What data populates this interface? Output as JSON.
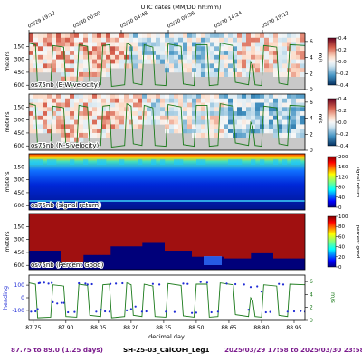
{
  "colors": {
    "footer_purple": "#7a1a8c",
    "footer_black": "#000000",
    "speed_green": "#1a7a1a",
    "heading_blue": "#1f2bd6",
    "nodata_gray": "#c8c8c8"
  },
  "top_axis": {
    "label": "UTC dates (MM/DD hh:mm)",
    "ticks": [
      "03/29 19:12",
      "03/30 00:00",
      "03/30 04:48",
      "03/30 09:36",
      "03/30 14:24",
      "03/30 19:12"
    ]
  },
  "footer": {
    "left": "87.75 to 89.0 (1.25 days)",
    "center": "SH-25-03_CalCOFI_Leg1",
    "right": "2025/03/29 17:58 to 2025/03/30 23:58"
  },
  "chart_data": [
    {
      "type": "heatmap",
      "label": "os75nb (E-W velocity)",
      "ylabel": "meters",
      "yticks": [
        150,
        300,
        450,
        600
      ],
      "ylim": [
        650,
        0
      ],
      "right_axis_label": "m/s",
      "right_ticks": [
        6,
        4,
        2,
        0
      ],
      "colorbar": {
        "ticks": [
          "0.4",
          "0.2",
          "0.0",
          "-0.2",
          "-0.4"
        ],
        "range": [
          -0.4,
          0.4
        ],
        "colormap": "RdBu_r"
      }
    },
    {
      "type": "heatmap",
      "label": "os75nb (N-S velocity)",
      "ylabel": "meters",
      "yticks": [
        150,
        300,
        450,
        600
      ],
      "ylim": [
        650,
        0
      ],
      "right_axis_label": "m/s",
      "right_ticks": [
        6,
        4,
        2,
        0
      ],
      "colorbar": {
        "ticks": [
          "0.4",
          "0.2",
          "0.0",
          "-0.2",
          "-0.4"
        ],
        "range": [
          -0.4,
          0.4
        ],
        "colormap": "RdBu_r"
      }
    },
    {
      "type": "heatmap",
      "label": "os75nb (signal return)",
      "ylabel": "meters",
      "yticks": [
        150,
        300,
        450,
        600
      ],
      "ylim": [
        650,
        0
      ],
      "colorbar": {
        "label": "signal return",
        "ticks": [
          "200",
          "160",
          "120",
          "80",
          "40",
          "0"
        ],
        "range": [
          0,
          200
        ],
        "colormap": "jet"
      }
    },
    {
      "type": "heatmap",
      "label": "os75nb (Percent Good)",
      "ylabel": "meters",
      "yticks": [
        150,
        300,
        450,
        600
      ],
      "ylim": [
        650,
        0
      ],
      "colorbar": {
        "label": "percent good",
        "ticks": [
          "100",
          "80",
          "60",
          "40",
          "20",
          "0"
        ],
        "range": [
          0,
          100
        ],
        "colormap": "jet"
      }
    },
    {
      "type": "line",
      "ylabel": "heading",
      "right_axis_label": "m/s",
      "yticks": [
        "100",
        "0",
        "-100"
      ],
      "ylim": [
        -180,
        180
      ],
      "right_ticks": [
        "6",
        "4",
        "2",
        "0"
      ],
      "right_ylim": [
        0,
        7
      ],
      "xlabel": "decimal day",
      "x_ticks": [
        "87.75",
        "87.90",
        "88.05",
        "88.20",
        "88.35",
        "88.50",
        "88.65",
        "88.80",
        "88.95"
      ],
      "xlim": [
        87.73,
        89.0
      ],
      "series": [
        {
          "name": "heading",
          "x": [
            87.74,
            87.76,
            87.77,
            87.775,
            87.78,
            87.8,
            87.82,
            87.835,
            87.84,
            87.86,
            87.88,
            87.89,
            87.91,
            87.94,
            87.96,
            87.99,
            88.0,
            88.02,
            88.04,
            88.06,
            88.08,
            88.1,
            88.105,
            88.13,
            88.16,
            88.18,
            88.2,
            88.22,
            88.25,
            88.27,
            88.3,
            88.33,
            88.36,
            88.4,
            88.44,
            88.46,
            88.48,
            88.5,
            88.52,
            88.55,
            88.57,
            88.6,
            88.64,
            88.68,
            88.72,
            88.74,
            88.75,
            88.78,
            88.8,
            88.82,
            88.84,
            88.88,
            88.9,
            88.92,
            88.95,
            88.98,
            89.0
          ],
          "values": [
            -110,
            -108,
            -90,
            115,
            118,
            120,
            112,
            118,
            -35,
            -45,
            -40,
            -40,
            -115,
            -112,
            115,
            112,
            105,
            108,
            -110,
            -95,
            -108,
            -110,
            110,
            112,
            115,
            -100,
            -90,
            -70,
            -110,
            -108,
            110,
            105,
            -110,
            -112,
            112,
            110,
            -120,
            -118,
            125,
            120,
            -115,
            -110,
            112,
            108,
            105,
            -95,
            85,
            90,
            50,
            -115,
            -112,
            110,
            105,
            -110,
            -108,
            -105,
            -110
          ]
        },
        {
          "name": "speed",
          "axis": "right",
          "x": [
            87.73,
            87.76,
            87.77,
            87.83,
            87.84,
            87.89,
            87.9,
            87.95,
            87.96,
            88.0,
            88.01,
            88.06,
            88.07,
            88.1,
            88.11,
            88.17,
            88.18,
            88.2,
            88.21,
            88.25,
            88.26,
            88.3,
            88.31,
            88.36,
            88.37,
            88.43,
            88.44,
            88.49,
            88.5,
            88.55,
            88.56,
            88.6,
            88.61,
            88.67,
            88.68,
            88.74,
            88.75,
            88.76,
            88.77,
            88.8,
            88.81,
            88.87,
            88.88,
            88.92,
            88.93,
            89.0
          ],
          "values": [
            5.8,
            5.6,
            0.4,
            0.5,
            5.5,
            5.3,
            0.6,
            0.5,
            5.6,
            5.4,
            0.8,
            0.6,
            5.5,
            5.6,
            0.4,
            0.6,
            5.8,
            5.5,
            0.8,
            0.6,
            5.6,
            5.3,
            0.6,
            0.5,
            5.7,
            5.4,
            0.7,
            0.5,
            5.6,
            5.6,
            0.5,
            0.6,
            5.8,
            5.5,
            0.9,
            0.6,
            3.5,
            3.0,
            0.6,
            0.5,
            5.5,
            5.3,
            0.8,
            0.6,
            5.6,
            5.5
          ]
        }
      ]
    }
  ]
}
